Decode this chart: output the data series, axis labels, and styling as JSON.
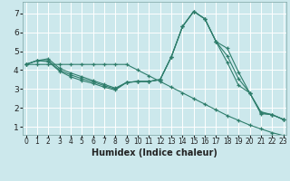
{
  "title": "",
  "xlabel": "Humidex (Indice chaleur)",
  "ylabel": "",
  "bg_color": "#cce8ec",
  "grid_color": "#ffffff",
  "line_color": "#2e7d6b",
  "marker": "+",
  "x_values": [
    0,
    1,
    2,
    3,
    4,
    5,
    6,
    7,
    8,
    9,
    10,
    11,
    12,
    13,
    14,
    15,
    16,
    17,
    18,
    19,
    20,
    21,
    22,
    23
  ],
  "series": [
    [
      4.3,
      4.5,
      4.6,
      4.1,
      3.85,
      3.65,
      3.45,
      3.25,
      3.05,
      3.35,
      3.4,
      3.4,
      3.5,
      4.7,
      6.3,
      7.1,
      6.7,
      5.5,
      5.15,
      3.9,
      2.8,
      1.7,
      1.65,
      1.4
    ],
    [
      4.3,
      4.5,
      4.5,
      4.0,
      3.75,
      3.55,
      3.38,
      3.18,
      3.0,
      3.35,
      3.4,
      3.4,
      3.5,
      4.7,
      6.3,
      7.1,
      6.7,
      5.5,
      4.75,
      3.55,
      2.8,
      1.75,
      1.65,
      1.4
    ],
    [
      4.3,
      4.5,
      4.45,
      3.95,
      3.65,
      3.45,
      3.3,
      3.1,
      2.95,
      3.35,
      3.4,
      3.4,
      3.5,
      4.7,
      6.3,
      7.1,
      6.7,
      5.5,
      4.4,
      3.2,
      2.8,
      1.8,
      1.65,
      1.4
    ],
    [
      4.3,
      4.3,
      4.3,
      4.3,
      4.3,
      4.3,
      4.3,
      4.3,
      4.3,
      4.3,
      4.0,
      3.7,
      3.4,
      3.1,
      2.8,
      2.5,
      2.2,
      1.9,
      1.6,
      1.35,
      1.1,
      0.9,
      0.7,
      0.55
    ]
  ],
  "xlim": [
    -0.3,
    23.3
  ],
  "ylim": [
    0.6,
    7.6
  ],
  "yticks": [
    1,
    2,
    3,
    4,
    5,
    6,
    7
  ],
  "xticks": [
    0,
    1,
    2,
    3,
    4,
    5,
    6,
    7,
    8,
    9,
    10,
    11,
    12,
    13,
    14,
    15,
    16,
    17,
    18,
    19,
    20,
    21,
    22,
    23
  ],
  "figsize": [
    3.2,
    2.0
  ],
  "dpi": 100,
  "tick_fontsize": 6,
  "xlabel_fontsize": 7
}
